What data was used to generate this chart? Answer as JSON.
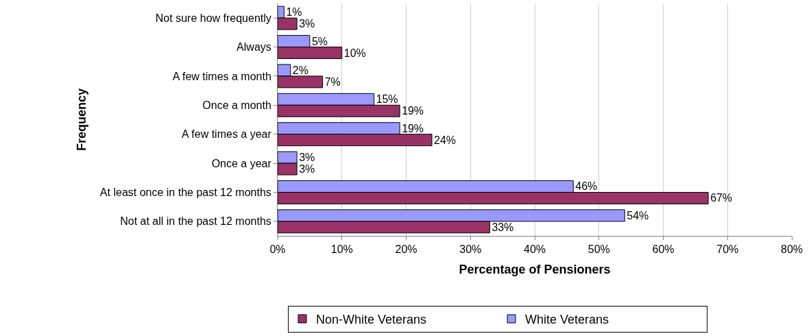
{
  "chart_data": {
    "type": "bar",
    "orientation": "horizontal",
    "xlabel": "Percentage of Pensioners",
    "ylabel": "Frequency",
    "categories": [
      "Not sure how frequently",
      "Always",
      "A few times a month",
      "Once a month",
      "A few times a year",
      "Once a year",
      "At least once in the past 12 months",
      "Not at all in the past 12 months"
    ],
    "series": [
      {
        "name": "Non-White Veterans",
        "color": "#993366",
        "values": [
          3,
          10,
          7,
          19,
          24,
          3,
          67,
          33
        ],
        "value_labels": [
          "3%",
          "10%",
          "7%",
          "19%",
          "24%",
          "3%",
          "67%",
          "33%"
        ]
      },
      {
        "name": "White Veterans",
        "color": "#9999ff",
        "values": [
          1,
          5,
          2,
          15,
          19,
          3,
          46,
          54
        ],
        "value_labels": [
          "1%",
          "5%",
          "2%",
          "15%",
          "19%",
          "3%",
          "46%",
          "54%"
        ]
      }
    ],
    "xlim": [
      0,
      80
    ],
    "xticks": [
      {
        "value": 0,
        "label": "0%"
      },
      {
        "value": 10,
        "label": "10%"
      },
      {
        "value": 20,
        "label": "20%"
      },
      {
        "value": 30,
        "label": "30%"
      },
      {
        "value": 40,
        "label": "40%"
      },
      {
        "value": 50,
        "label": "50%"
      },
      {
        "value": 60,
        "label": "60%"
      },
      {
        "value": 70,
        "label": "70%"
      },
      {
        "value": 80,
        "label": "80%"
      }
    ],
    "grid": "x",
    "legend": "bottom"
  }
}
